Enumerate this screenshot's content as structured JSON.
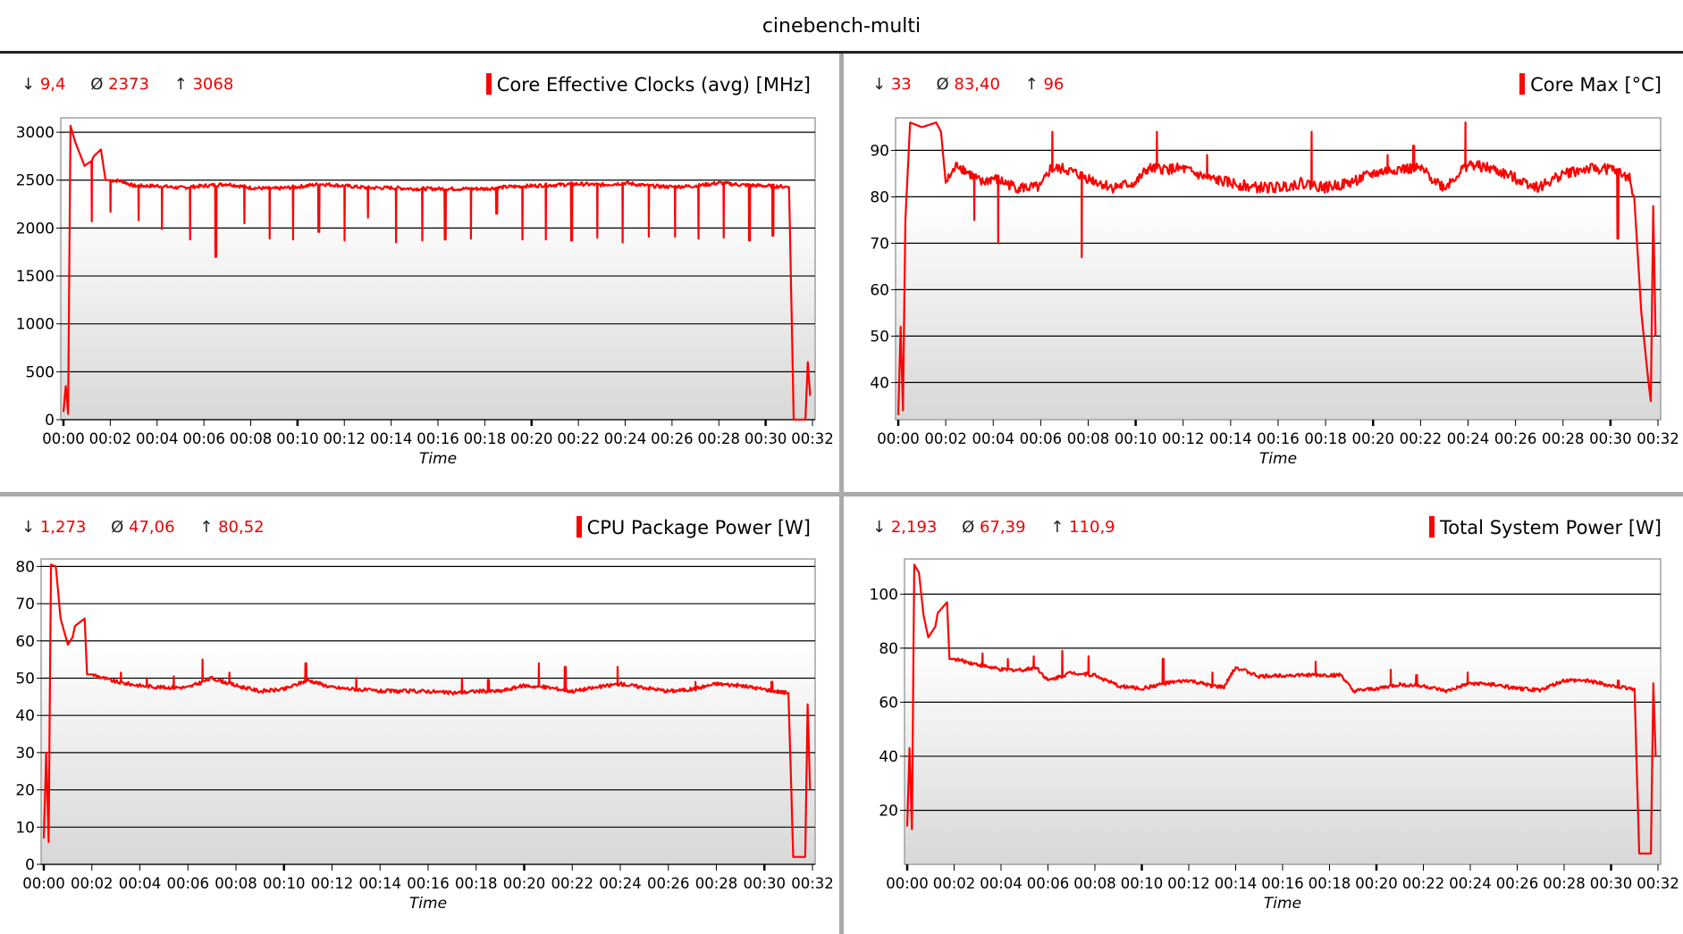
{
  "window": {
    "title": "cinebench-multi"
  },
  "colors": {
    "series": "#ff0000",
    "stat_value": "#ee0000",
    "divider": "#aaaaaa",
    "grid": "#000000"
  },
  "panels": [
    {
      "stats": {
        "min_symbol": "↓",
        "min": "9,4",
        "avg_symbol": "Ø",
        "avg": "2373",
        "max_symbol": "↑",
        "max": "3068"
      },
      "legend": "Core Effective Clocks (avg) [MHz]"
    },
    {
      "stats": {
        "min_symbol": "↓",
        "min": "33",
        "avg_symbol": "Ø",
        "avg": "83,40",
        "max_symbol": "↑",
        "max": "96"
      },
      "legend": "Core Max [°C]"
    },
    {
      "stats": {
        "min_symbol": "↓",
        "min": "1,273",
        "avg_symbol": "Ø",
        "avg": "47,06",
        "max_symbol": "↑",
        "max": "80,52"
      },
      "legend": "CPU Package Power [W]"
    },
    {
      "stats": {
        "min_symbol": "↓",
        "min": "2,193",
        "avg_symbol": "Ø",
        "avg": "67,39",
        "max_symbol": "↑",
        "max": "110,9"
      },
      "legend": "Total System Power [W]"
    }
  ],
  "chart_data": [
    {
      "type": "line",
      "title": "Core Effective Clocks (avg) [MHz]",
      "xlabel": "Time",
      "ylabel": "",
      "x_ticks": [
        "00:00",
        "00:02",
        "00:04",
        "00:06",
        "00:08",
        "00:10",
        "00:12",
        "00:14",
        "00:16",
        "00:18",
        "00:20",
        "00:22",
        "00:24",
        "00:26",
        "00:28",
        "00:30",
        "00:32"
      ],
      "y_ticks": [
        0,
        500,
        1000,
        1500,
        2000,
        2500,
        3000
      ],
      "ylim": [
        0,
        3150
      ],
      "xlim_minutes": [
        0,
        32
      ],
      "grid": true,
      "legend_position": "top-right",
      "series": [
        {
          "name": "Core Effective Clocks (avg) [MHz]",
          "color": "#ff0000",
          "x_minutes": [
            0,
            0.1,
            0.2,
            0.3,
            0.5,
            0.9,
            1.2,
            1.3,
            1.6,
            1.8,
            2.0,
            2.5,
            3.0,
            4.0,
            5.0,
            6.0,
            7.0,
            8.0,
            9.0,
            10.0,
            11.0,
            12.0,
            13.0,
            14.0,
            15.0,
            16.0,
            17.0,
            18.0,
            19.0,
            20.0,
            21.0,
            22.0,
            23.0,
            24.0,
            25.0,
            26.0,
            27.0,
            28.0,
            29.0,
            30.0,
            31.0,
            31.2,
            31.7,
            31.8,
            31.9
          ],
          "values": [
            80,
            350,
            60,
            3068,
            2900,
            2650,
            2700,
            2750,
            2820,
            2500,
            2500,
            2490,
            2440,
            2440,
            2420,
            2440,
            2460,
            2420,
            2410,
            2430,
            2460,
            2440,
            2420,
            2420,
            2410,
            2410,
            2410,
            2410,
            2430,
            2440,
            2450,
            2460,
            2450,
            2470,
            2440,
            2430,
            2440,
            2470,
            2450,
            2440,
            2430,
            0,
            0,
            600,
            250
          ],
          "dips": [
            {
              "x": 1.2,
              "y": 2070
            },
            {
              "x": 2.0,
              "y": 2170
            },
            {
              "x": 3.2,
              "y": 2080
            },
            {
              "x": 4.2,
              "y": 1990
            },
            {
              "x": 5.4,
              "y": 1880
            },
            {
              "x": 6.5,
              "y": 1700
            },
            {
              "x": 7.7,
              "y": 2050
            },
            {
              "x": 8.8,
              "y": 1890
            },
            {
              "x": 9.8,
              "y": 1880
            },
            {
              "x": 10.9,
              "y": 1960
            },
            {
              "x": 12.0,
              "y": 1870
            },
            {
              "x": 13.0,
              "y": 2110
            },
            {
              "x": 14.2,
              "y": 1850
            },
            {
              "x": 15.3,
              "y": 1870
            },
            {
              "x": 16.3,
              "y": 1880
            },
            {
              "x": 17.4,
              "y": 1890
            },
            {
              "x": 18.5,
              "y": 2150
            },
            {
              "x": 19.6,
              "y": 1880
            },
            {
              "x": 20.6,
              "y": 1880
            },
            {
              "x": 21.7,
              "y": 1870
            },
            {
              "x": 22.8,
              "y": 1900
            },
            {
              "x": 23.9,
              "y": 1850
            },
            {
              "x": 25.0,
              "y": 1910
            },
            {
              "x": 26.1,
              "y": 1910
            },
            {
              "x": 27.1,
              "y": 1890
            },
            {
              "x": 28.2,
              "y": 1900
            },
            {
              "x": 29.3,
              "y": 1870
            },
            {
              "x": 30.3,
              "y": 1920
            }
          ]
        }
      ]
    },
    {
      "type": "line",
      "title": "Core Max [°C]",
      "xlabel": "Time",
      "ylabel": "",
      "x_ticks": [
        "00:00",
        "00:02",
        "00:04",
        "00:06",
        "00:08",
        "00:10",
        "00:12",
        "00:14",
        "00:16",
        "00:18",
        "00:20",
        "00:22",
        "00:24",
        "00:26",
        "00:28",
        "00:30",
        "00:32"
      ],
      "y_ticks": [
        40,
        50,
        60,
        70,
        80,
        90
      ],
      "ylim": [
        32,
        97
      ],
      "xlim_minutes": [
        0,
        32
      ],
      "grid": true,
      "legend_position": "top-right",
      "series": [
        {
          "name": "Core Max [°C]",
          "color": "#ff0000",
          "x_minutes": [
            0,
            0.1,
            0.2,
            0.3,
            0.5,
            1.0,
            1.6,
            1.8,
            2.0,
            2.5,
            3.0,
            3.5,
            4.0,
            5.0,
            6.0,
            6.4,
            7.0,
            8.0,
            9.0,
            10.0,
            10.5,
            11.0,
            12.0,
            13.0,
            14.0,
            15.0,
            16.0,
            17.0,
            18.0,
            19.0,
            20.0,
            21.0,
            22.0,
            23.0,
            24.0,
            25.0,
            26.0,
            27.0,
            28.0,
            29.0,
            30.0,
            30.8,
            31.0,
            31.3,
            31.6,
            31.7,
            31.8,
            31.9
          ],
          "values": [
            33,
            52,
            34,
            75,
            96,
            95,
            96,
            94,
            83,
            87,
            85,
            83,
            84,
            82,
            82,
            86,
            86,
            84,
            82,
            83,
            86,
            86,
            86,
            84,
            83,
            82,
            82,
            83,
            82,
            83,
            85,
            86,
            86,
            82,
            87,
            86,
            84,
            82,
            85,
            86,
            86,
            84,
            80,
            55,
            40,
            36,
            78,
            50
          ],
          "spikes": [
            {
              "x": 3.2,
              "y": 75
            },
            {
              "x": 4.2,
              "y": 70
            },
            {
              "x": 6.5,
              "y": 94
            },
            {
              "x": 7.7,
              "y": 67
            },
            {
              "x": 10.9,
              "y": 94
            },
            {
              "x": 13.0,
              "y": 89
            },
            {
              "x": 17.4,
              "y": 94
            },
            {
              "x": 20.6,
              "y": 89
            },
            {
              "x": 21.7,
              "y": 91
            },
            {
              "x": 23.9,
              "y": 96
            },
            {
              "x": 30.3,
              "y": 71
            }
          ]
        }
      ]
    },
    {
      "type": "line",
      "title": "CPU Package Power [W]",
      "xlabel": "Time",
      "ylabel": "",
      "x_ticks": [
        "00:00",
        "00:02",
        "00:04",
        "00:06",
        "00:08",
        "00:10",
        "00:12",
        "00:14",
        "00:16",
        "00:18",
        "00:20",
        "00:22",
        "00:24",
        "00:26",
        "00:28",
        "00:30",
        "00:32"
      ],
      "y_ticks": [
        0,
        10,
        20,
        30,
        40,
        50,
        60,
        70,
        80
      ],
      "ylim": [
        0,
        82
      ],
      "xlim_minutes": [
        0,
        32
      ],
      "grid": true,
      "legend_position": "top-right",
      "series": [
        {
          "name": "CPU Package Power [W]",
          "color": "#ff0000",
          "x_minutes": [
            0,
            0.1,
            0.2,
            0.3,
            0.5,
            0.7,
            1.0,
            1.2,
            1.3,
            1.7,
            1.8,
            2.0,
            3.0,
            4.0,
            5.0,
            6.0,
            7.0,
            8.0,
            9.0,
            10.0,
            11.0,
            12.0,
            13.0,
            14.0,
            15.0,
            16.0,
            17.0,
            18.0,
            19.0,
            20.0,
            21.0,
            22.0,
            23.0,
            24.0,
            25.0,
            26.0,
            27.0,
            28.0,
            29.0,
            30.0,
            31.0,
            31.2,
            31.7,
            31.8,
            31.9
          ],
          "values": [
            7,
            30,
            6,
            80.5,
            80,
            66,
            59,
            61,
            64,
            66,
            51,
            51,
            49,
            48,
            47.5,
            47.5,
            50,
            48,
            46.5,
            47,
            49.5,
            47.5,
            47,
            46.5,
            46.5,
            46.5,
            46,
            46.5,
            46.5,
            48,
            47.5,
            46.5,
            47.5,
            48.5,
            47.5,
            46.5,
            47,
            48.5,
            48,
            47,
            46,
            2,
            2,
            43,
            20
          ],
          "spikes": [
            {
              "x": 2.1,
              "y": 54
            },
            {
              "x": 3.2,
              "y": 51.5
            },
            {
              "x": 4.3,
              "y": 50
            },
            {
              "x": 5.4,
              "y": 50.5
            },
            {
              "x": 6.6,
              "y": 55
            },
            {
              "x": 7.7,
              "y": 51.5
            },
            {
              "x": 10.9,
              "y": 54
            },
            {
              "x": 13.0,
              "y": 50
            },
            {
              "x": 17.4,
              "y": 50
            },
            {
              "x": 18.5,
              "y": 49.5
            },
            {
              "x": 20.6,
              "y": 54
            },
            {
              "x": 21.7,
              "y": 53
            },
            {
              "x": 23.9,
              "y": 53
            },
            {
              "x": 27.1,
              "y": 49
            },
            {
              "x": 30.3,
              "y": 49
            }
          ]
        }
      ]
    },
    {
      "type": "line",
      "title": "Total System Power [W]",
      "xlabel": "Time",
      "ylabel": "",
      "x_ticks": [
        "00:00",
        "00:02",
        "00:04",
        "00:06",
        "00:08",
        "00:10",
        "00:12",
        "00:14",
        "00:16",
        "00:18",
        "00:20",
        "00:22",
        "00:24",
        "00:26",
        "00:28",
        "00:30",
        "00:32"
      ],
      "y_ticks": [
        20,
        40,
        60,
        80,
        100
      ],
      "ylim": [
        0,
        113
      ],
      "xlim_minutes": [
        0,
        32
      ],
      "grid": true,
      "legend_position": "top-right",
      "series": [
        {
          "name": "Total System Power [W]",
          "color": "#ff0000",
          "x_minutes": [
            0,
            0.1,
            0.2,
            0.3,
            0.5,
            0.7,
            0.9,
            1.2,
            1.3,
            1.7,
            1.8,
            2.0,
            3.0,
            4.0,
            5.0,
            5.5,
            6.0,
            7.0,
            8.0,
            9.0,
            10.0,
            11.0,
            12.0,
            13.0,
            13.5,
            14.0,
            15.0,
            16.0,
            17.0,
            18.0,
            18.5,
            19.0,
            20.0,
            21.0,
            22.0,
            23.0,
            24.0,
            25.0,
            26.0,
            27.0,
            28.0,
            29.0,
            30.0,
            31.0,
            31.2,
            31.7,
            31.8,
            31.9
          ],
          "values": [
            14,
            43,
            13,
            110.9,
            108,
            92,
            84,
            88,
            93,
            97,
            76,
            76,
            74,
            72,
            72,
            73,
            68,
            71,
            70,
            66,
            65,
            67,
            68,
            66,
            65.5,
            73,
            69.5,
            70,
            70,
            70,
            70,
            64,
            65,
            66.5,
            66,
            64,
            67,
            66.5,
            65,
            64.5,
            68,
            68,
            66,
            65,
            4,
            4,
            67,
            40
          ],
          "spikes": [
            {
              "x": 2.1,
              "y": 81
            },
            {
              "x": 3.2,
              "y": 78
            },
            {
              "x": 4.3,
              "y": 76
            },
            {
              "x": 5.4,
              "y": 77
            },
            {
              "x": 6.6,
              "y": 79
            },
            {
              "x": 7.7,
              "y": 77
            },
            {
              "x": 10.9,
              "y": 76
            },
            {
              "x": 13.0,
              "y": 71
            },
            {
              "x": 17.4,
              "y": 75
            },
            {
              "x": 18.5,
              "y": 70
            },
            {
              "x": 20.6,
              "y": 72
            },
            {
              "x": 21.7,
              "y": 70
            },
            {
              "x": 23.9,
              "y": 71
            },
            {
              "x": 30.3,
              "y": 68
            }
          ]
        }
      ]
    }
  ]
}
